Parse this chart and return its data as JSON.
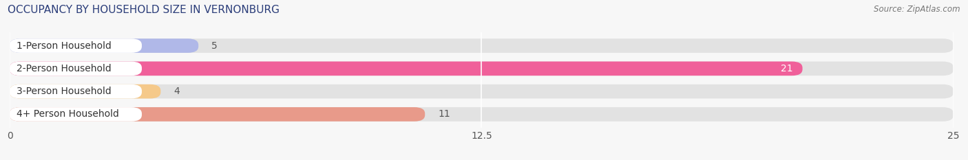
{
  "title": "OCCUPANCY BY HOUSEHOLD SIZE IN VERNONBURG",
  "source": "Source: ZipAtlas.com",
  "categories": [
    "1-Person Household",
    "2-Person Household",
    "3-Person Household",
    "4+ Person Household"
  ],
  "values": [
    5,
    21,
    4,
    11
  ],
  "bar_colors": [
    "#b0b8e8",
    "#f0609a",
    "#f5c98a",
    "#e89a8a"
  ],
  "label_colors": [
    "#666666",
    "#ffffff",
    "#666666",
    "#666666"
  ],
  "xlim": [
    0,
    25
  ],
  "xticks": [
    0,
    12.5,
    25
  ],
  "xtick_labels": [
    "0",
    "12.5",
    "25"
  ],
  "background_color": "#f7f7f7",
  "bar_bg_color": "#e2e2e2",
  "bar_white_cap_color": "#ffffff",
  "title_fontsize": 11,
  "tick_fontsize": 10,
  "bar_label_fontsize": 10,
  "category_fontsize": 10,
  "bar_height": 0.62,
  "figsize": [
    14.06,
    2.33
  ],
  "dpi": 100
}
